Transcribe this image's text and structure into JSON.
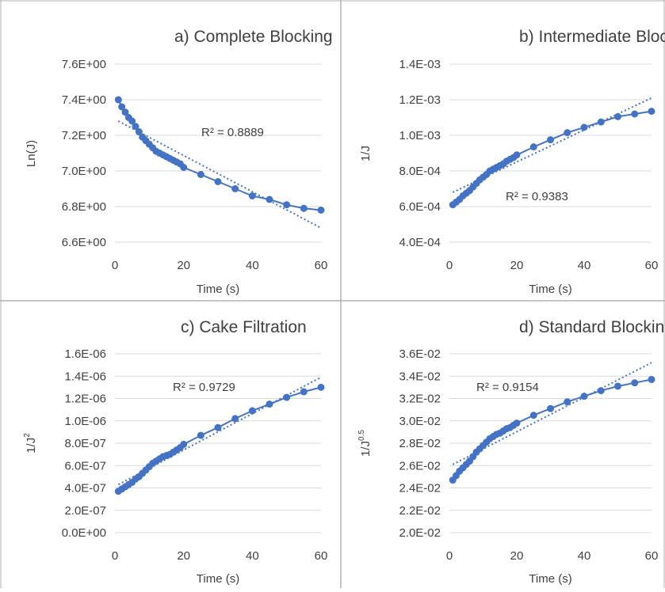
{
  "accent_color": "#4472C4",
  "chart_data": [
    {
      "type": "scatter",
      "title": "a) Complete Blocking",
      "xlabel": "Time (s)",
      "ylabel": "Ln(J)",
      "ylabel_sup": "",
      "xlim": [
        0,
        60
      ],
      "ylim": [
        6.6,
        7.6
      ],
      "x_ticks": [
        "0",
        "20",
        "40",
        "60"
      ],
      "y_ticks": [
        "6.6E+00",
        "6.8E+00",
        "7.0E+00",
        "7.2E+00",
        "7.4E+00",
        "7.6E+00"
      ],
      "grid": "horizontal",
      "r2": "R² = 0.8889",
      "series": [
        {
          "x": [
            1,
            2,
            3,
            4,
            5,
            6,
            7,
            8,
            9,
            10,
            11,
            12,
            13,
            14,
            15,
            16,
            17,
            18,
            19,
            20,
            25,
            30,
            35,
            40,
            45,
            50,
            55,
            60
          ],
          "y": [
            7.4,
            7.36,
            7.33,
            7.3,
            7.28,
            7.25,
            7.22,
            7.19,
            7.17,
            7.15,
            7.13,
            7.11,
            7.1,
            7.09,
            7.08,
            7.07,
            7.06,
            7.05,
            7.04,
            7.02,
            6.98,
            6.94,
            6.9,
            6.86,
            6.84,
            6.81,
            6.79,
            6.78
          ]
        }
      ],
      "trendline": {
        "x": [
          1,
          60
        ],
        "y": [
          7.28,
          6.68
        ]
      }
    },
    {
      "type": "scatter",
      "title": "b) Intermediate Blocking",
      "xlabel": "Time (s)",
      "ylabel": "1/J",
      "ylabel_sup": "",
      "xlim": [
        0,
        60
      ],
      "ylim": [
        0.0004,
        0.0014
      ],
      "x_ticks": [
        "0",
        "20",
        "40",
        "60"
      ],
      "y_ticks": [
        "4.0E-04",
        "6.0E-04",
        "8.0E-04",
        "1.0E-03",
        "1.2E-03",
        "1.4E-03"
      ],
      "grid": "horizontal",
      "r2": "R² = 0.9383",
      "series": [
        {
          "x": [
            1,
            2,
            3,
            4,
            5,
            6,
            7,
            8,
            9,
            10,
            11,
            12,
            13,
            14,
            15,
            16,
            17,
            18,
            19,
            20,
            25,
            30,
            35,
            40,
            45,
            50,
            55,
            60
          ],
          "y": [
            0.00061,
            0.000625,
            0.00064,
            0.00066,
            0.000675,
            0.00069,
            0.00071,
            0.00073,
            0.00075,
            0.000765,
            0.00078,
            0.0008,
            0.00081,
            0.00082,
            0.00083,
            0.00084,
            0.000855,
            0.000865,
            0.000875,
            0.00089,
            0.000935,
            0.000975,
            0.001015,
            0.001045,
            0.001075,
            0.001105,
            0.00112,
            0.001135
          ]
        }
      ],
      "trendline": {
        "x": [
          1,
          60
        ],
        "y": [
          0.00068,
          0.00121
        ]
      }
    },
    {
      "type": "scatter",
      "title": "c) Cake Filtration",
      "xlabel": "Time (s)",
      "ylabel": "1/J",
      "ylabel_sup": "2",
      "xlim": [
        0,
        60
      ],
      "ylim": [
        0,
        1.6e-06
      ],
      "x_ticks": [
        "0",
        "20",
        "40",
        "60"
      ],
      "y_ticks": [
        "0.0E+00",
        "2.0E-07",
        "4.0E-07",
        "6.0E-07",
        "8.0E-07",
        "1.0E-06",
        "1.2E-06",
        "1.4E-06",
        "1.6E-06"
      ],
      "grid": "horizontal",
      "r2": "R² = 0.9729",
      "series": [
        {
          "x": [
            1,
            2,
            3,
            4,
            5,
            6,
            7,
            8,
            9,
            10,
            11,
            12,
            13,
            14,
            15,
            16,
            17,
            18,
            19,
            20,
            25,
            30,
            35,
            40,
            45,
            50,
            55,
            60
          ],
          "y": [
            3.7e-07,
            3.9e-07,
            4.1e-07,
            4.3e-07,
            4.5e-07,
            4.8e-07,
            5e-07,
            5.3e-07,
            5.6e-07,
            5.9e-07,
            6.2e-07,
            6.4e-07,
            6.6e-07,
            6.8e-07,
            6.9e-07,
            7e-07,
            7.2e-07,
            7.4e-07,
            7.6e-07,
            7.9e-07,
            8.7e-07,
            9.4e-07,
            1.02e-06,
            1.09e-06,
            1.15e-06,
            1.21e-06,
            1.26e-06,
            1.3e-06
          ]
        }
      ],
      "trendline": {
        "x": [
          1,
          60
        ],
        "y": [
          4.3e-07,
          1.39e-06
        ]
      }
    },
    {
      "type": "scatter",
      "title": "d) Standard Blocking",
      "xlabel": "Time (s)",
      "ylabel": "1/J",
      "ylabel_sup": "0.5",
      "xlim": [
        0,
        60
      ],
      "ylim": [
        0.02,
        0.036
      ],
      "x_ticks": [
        "0",
        "20",
        "40",
        "60"
      ],
      "y_ticks": [
        "2.0E-02",
        "2.2E-02",
        "2.4E-02",
        "2.6E-02",
        "2.8E-02",
        "3.0E-02",
        "3.2E-02",
        "3.4E-02",
        "3.6E-02"
      ],
      "grid": "horizontal",
      "r2": "R² = 0.9154",
      "series": [
        {
          "x": [
            1,
            2,
            3,
            4,
            5,
            6,
            7,
            8,
            9,
            10,
            11,
            12,
            13,
            14,
            15,
            16,
            17,
            18,
            19,
            20,
            25,
            30,
            35,
            40,
            45,
            50,
            55,
            60
          ],
          "y": [
            0.0247,
            0.0251,
            0.0255,
            0.0258,
            0.0261,
            0.0264,
            0.0268,
            0.0272,
            0.0275,
            0.0278,
            0.0281,
            0.0284,
            0.0286,
            0.0288,
            0.0289,
            0.0291,
            0.0293,
            0.0294,
            0.0296,
            0.0298,
            0.0305,
            0.0311,
            0.0317,
            0.0322,
            0.0327,
            0.0331,
            0.0334,
            0.0337
          ]
        }
      ],
      "trendline": {
        "x": [
          1,
          60
        ],
        "y": [
          0.0261,
          0.0352
        ]
      }
    }
  ]
}
